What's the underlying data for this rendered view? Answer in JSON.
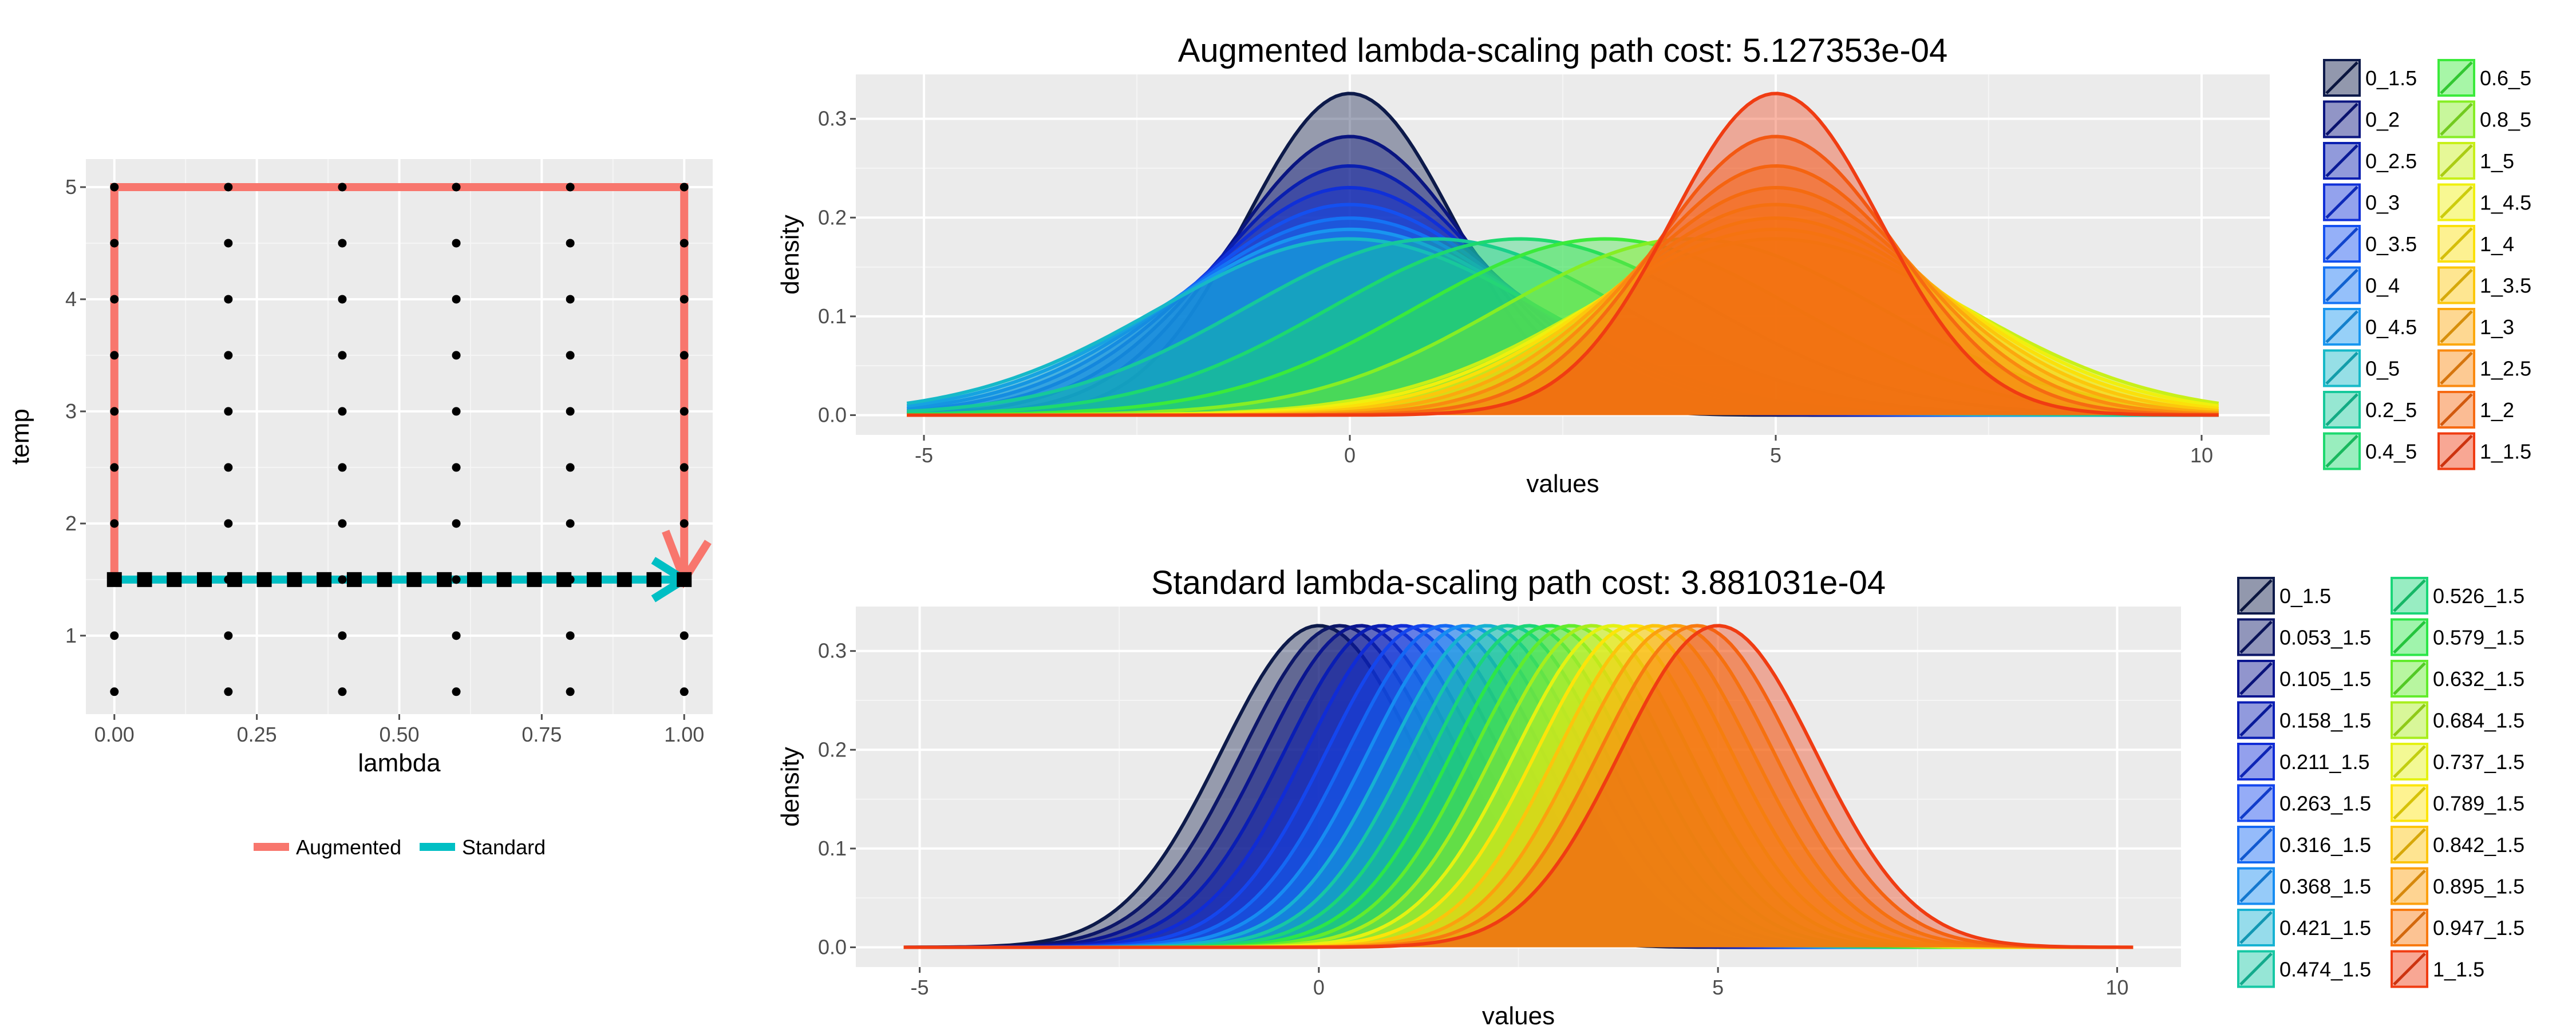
{
  "chart_data": [
    {
      "type": "line",
      "panel": "path-grid",
      "xlabel": "lambda",
      "ylabel": "temp",
      "xlim": [
        -0.05,
        1.05
      ],
      "ylim": [
        0.3,
        5.25
      ],
      "x_ticks": [
        0,
        0.25,
        0.5,
        0.75,
        1
      ],
      "x_tick_labels": [
        "0.00",
        "0.25",
        "0.50",
        "0.75",
        "1.00"
      ],
      "y_ticks": [
        1,
        2,
        3,
        4,
        5
      ],
      "y_tick_labels": [
        "1",
        "2",
        "3",
        "4",
        "5"
      ],
      "grid": true,
      "legend_position": "bottom",
      "grid_points": {
        "lambda": [
          0,
          0.2,
          0.4,
          0.6,
          0.8,
          1
        ],
        "temp": [
          0.5,
          1,
          1.5,
          2,
          2.5,
          3,
          3.5,
          4,
          4.5,
          5
        ]
      },
      "series": [
        {
          "name": "Augmented",
          "color": "#F8766D",
          "x": [
            0,
            0,
            1,
            1
          ],
          "y": [
            1.5,
            5,
            5,
            1.5
          ]
        },
        {
          "name": "Standard",
          "color": "#00BFC4",
          "x": [
            0,
            1
          ],
          "y": [
            1.5,
            1.5
          ]
        }
      ],
      "standard_path_lambdas": [
        0,
        0.053,
        0.105,
        0.158,
        0.211,
        0.263,
        0.316,
        0.368,
        0.421,
        0.474,
        0.526,
        0.579,
        0.632,
        0.684,
        0.737,
        0.789,
        0.842,
        0.895,
        0.947,
        1
      ]
    },
    {
      "type": "area",
      "panel": "augmented-densities",
      "title": "Augmented lambda-scaling path cost:  5.127353e-04",
      "xlabel": "values",
      "ylabel": "density",
      "xlim": [
        -5.8,
        10.8
      ],
      "ylim": [
        -0.02,
        0.345
      ],
      "x_ticks": [
        -5,
        0,
        5,
        10
      ],
      "x_tick_labels": [
        "-5",
        "0",
        "5",
        "10"
      ],
      "y_ticks": [
        0,
        0.1,
        0.2,
        0.3
      ],
      "y_tick_labels": [
        "0.0",
        "0.1",
        "0.2",
        "0.3"
      ],
      "x_range": [
        -5.2,
        10.2
      ],
      "grid": true,
      "legend_position": "right",
      "legend_columns": 2,
      "series": [
        {
          "name": "0_1.5",
          "mean": 0,
          "sd": 1.225,
          "color": "#0D1A4A"
        },
        {
          "name": "0_2",
          "mean": 0,
          "sd": 1.414,
          "color": "#0A1580"
        },
        {
          "name": "0_2.5",
          "mean": 0,
          "sd": 1.581,
          "color": "#0A1FB0"
        },
        {
          "name": "0_3",
          "mean": 0,
          "sd": 1.732,
          "color": "#1030D8"
        },
        {
          "name": "0_3.5",
          "mean": 0,
          "sd": 1.871,
          "color": "#1450F0"
        },
        {
          "name": "0_4",
          "mean": 0,
          "sd": 2,
          "color": "#1473F5"
        },
        {
          "name": "0_4.5",
          "mean": 0,
          "sd": 2.121,
          "color": "#1896F0"
        },
        {
          "name": "0_5",
          "mean": 0,
          "sd": 2.236,
          "color": "#16B9C8"
        },
        {
          "name": "0.2_5",
          "mean": 1,
          "sd": 2.236,
          "color": "#16C99B"
        },
        {
          "name": "0.4_5",
          "mean": 2,
          "sd": 2.236,
          "color": "#1DD96F"
        },
        {
          "name": "0.6_5",
          "mean": 3,
          "sd": 2.236,
          "color": "#3BEA3B"
        },
        {
          "name": "0.8_5",
          "mean": 4,
          "sd": 2.236,
          "color": "#86EE24"
        },
        {
          "name": "1_5",
          "mean": 5,
          "sd": 2.236,
          "color": "#C8F018"
        },
        {
          "name": "1_4.5",
          "mean": 5,
          "sd": 2.121,
          "color": "#F0F00E"
        },
        {
          "name": "1_4",
          "mean": 5,
          "sd": 2,
          "color": "#FBE00A"
        },
        {
          "name": "1_3.5",
          "mean": 5,
          "sd": 1.871,
          "color": "#FCC70C"
        },
        {
          "name": "1_3",
          "mean": 5,
          "sd": 1.732,
          "color": "#FCA80E"
        },
        {
          "name": "1_2.5",
          "mean": 5,
          "sd": 1.581,
          "color": "#FA8A10"
        },
        {
          "name": "1_2",
          "mean": 5,
          "sd": 1.414,
          "color": "#F66A12"
        },
        {
          "name": "1_1.5",
          "mean": 5,
          "sd": 1.225,
          "color": "#F03C12"
        }
      ]
    },
    {
      "type": "area",
      "panel": "standard-densities",
      "title": "Standard lambda-scaling path cost:  3.881031e-04",
      "xlabel": "values",
      "ylabel": "density",
      "xlim": [
        -5.8,
        10.8
      ],
      "ylim": [
        -0.02,
        0.345
      ],
      "x_ticks": [
        -5,
        0,
        5,
        10
      ],
      "x_tick_labels": [
        "-5",
        "0",
        "5",
        "10"
      ],
      "y_ticks": [
        0,
        0.1,
        0.2,
        0.3
      ],
      "y_tick_labels": [
        "0.0",
        "0.1",
        "0.2",
        "0.3"
      ],
      "x_range": [
        -5.2,
        10.2
      ],
      "grid": true,
      "legend_position": "right",
      "legend_columns": 2,
      "series": [
        {
          "name": "0_1.5",
          "mean": 0,
          "sd": 1.225,
          "color": "#0D1A4A"
        },
        {
          "name": "0.053_1.5",
          "mean": 0.263,
          "sd": 1.225,
          "color": "#0C1668"
        },
        {
          "name": "0.105_1.5",
          "mean": 0.526,
          "sd": 1.225,
          "color": "#0A1590"
        },
        {
          "name": "0.158_1.5",
          "mean": 0.789,
          "sd": 1.225,
          "color": "#0A1EB4"
        },
        {
          "name": "0.211_1.5",
          "mean": 1.053,
          "sd": 1.225,
          "color": "#102CD6"
        },
        {
          "name": "0.263_1.5",
          "mean": 1.316,
          "sd": 1.225,
          "color": "#1446EE"
        },
        {
          "name": "0.316_1.5",
          "mean": 1.579,
          "sd": 1.225,
          "color": "#1468F4"
        },
        {
          "name": "0.368_1.5",
          "mean": 1.842,
          "sd": 1.225,
          "color": "#168CF2"
        },
        {
          "name": "0.421_1.5",
          "mean": 2.105,
          "sd": 1.225,
          "color": "#16B2D2"
        },
        {
          "name": "0.474_1.5",
          "mean": 2.368,
          "sd": 1.225,
          "color": "#16C8A4"
        },
        {
          "name": "0.526_1.5",
          "mean": 2.632,
          "sd": 1.225,
          "color": "#1AD678"
        },
        {
          "name": "0.579_1.5",
          "mean": 2.895,
          "sd": 1.225,
          "color": "#2CE648"
        },
        {
          "name": "0.632_1.5",
          "mean": 3.158,
          "sd": 1.225,
          "color": "#62EC2C"
        },
        {
          "name": "0.684_1.5",
          "mean": 3.421,
          "sd": 1.225,
          "color": "#A8EE1C"
        },
        {
          "name": "0.737_1.5",
          "mean": 3.684,
          "sd": 1.225,
          "color": "#E4F212"
        },
        {
          "name": "0.789_1.5",
          "mean": 3.947,
          "sd": 1.225,
          "color": "#FCE40A"
        },
        {
          "name": "0.842_1.5",
          "mean": 4.211,
          "sd": 1.225,
          "color": "#FCC40C"
        },
        {
          "name": "0.895_1.5",
          "mean": 4.474,
          "sd": 1.225,
          "color": "#FCA00E"
        },
        {
          "name": "0.947_1.5",
          "mean": 4.737,
          "sd": 1.225,
          "color": "#F87A10"
        },
        {
          "name": "1_1.5",
          "mean": 5,
          "sd": 1.225,
          "color": "#F03C12"
        }
      ]
    }
  ]
}
